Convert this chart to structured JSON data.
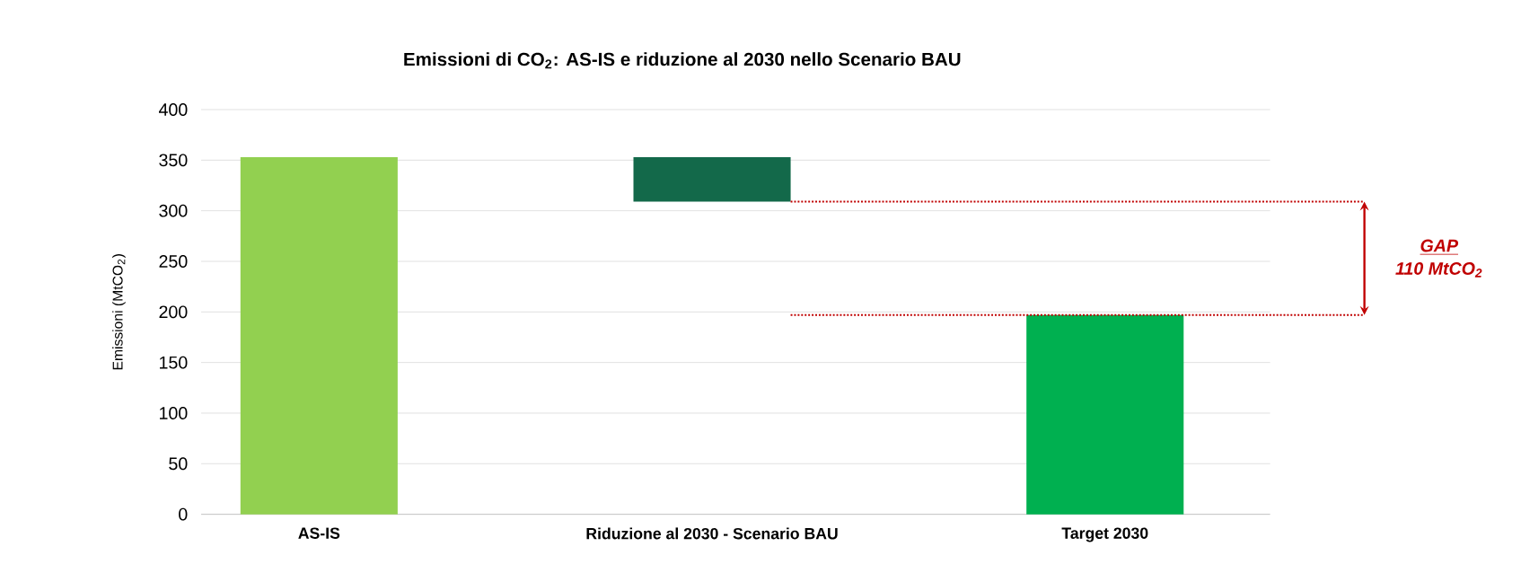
{
  "chart_data": {
    "type": "bar",
    "title": "Emissioni di CO$_{2}$: AS-IS e riduzione al 2030 nello Scenario BAU",
    "ylabel": "Emissioni (MtCO$_{2}$)",
    "categories": [
      "AS-IS",
      "Riduzione al 2030 - Scenario BAU",
      "Target 2030"
    ],
    "values": [
      353,
      44,
      197
    ],
    "base": [
      0,
      309,
      0
    ],
    "colors": [
      "#92d050",
      "#13694a",
      "#00b050"
    ],
    "ylim": [
      0,
      400
    ],
    "yticks": [
      0,
      50,
      100,
      150,
      200,
      250,
      300,
      350,
      400
    ],
    "grid": "y",
    "ref_lines": [
      {
        "axis": "y",
        "value": 309,
        "color": "#c00000",
        "line_style": "dotted"
      },
      {
        "axis": "y",
        "value": 197,
        "color": "#c00000",
        "line_style": "dotted"
      }
    ],
    "annotations": [
      "GAP",
      "110 MtCO$_{2}$"
    ]
  }
}
